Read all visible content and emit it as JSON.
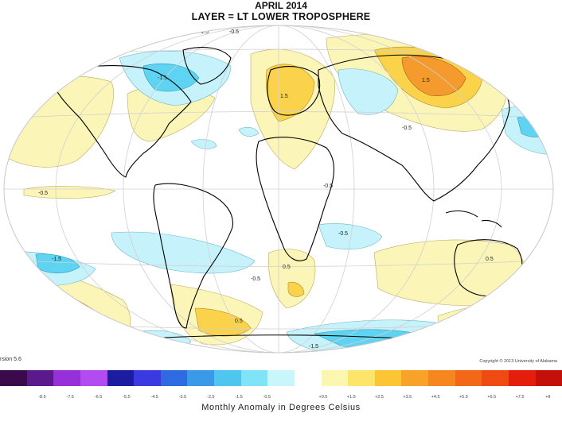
{
  "title": "APRIL 2014",
  "subtitle": "LAYER = LT LOWER TROPOSPHERE",
  "footer": {
    "version": "rsion 5.6",
    "copyright": "Copyright © 2013 University of Alabama"
  },
  "legend": {
    "label": "Monthly Anomaly in Degrees Celsius",
    "colors": [
      "#3a0a4a",
      "#5a1a8c",
      "#9630d8",
      "#b24cf0",
      "#1c1ca0",
      "#3a3ae0",
      "#2f6be0",
      "#3a9ae8",
      "#4fc6f0",
      "#7fe4f8",
      "#c9f6fb",
      "#ffffff",
      "#fbf6b0",
      "#fce56a",
      "#fbc534",
      "#f8a22a",
      "#f6861f",
      "#f26818",
      "#ee4a12",
      "#e41e0c",
      "#c4100a"
    ],
    "ticks": [
      "",
      "-8.5",
      "-7.5",
      "-6.5",
      "-5.5",
      "-4.5",
      "-3.5",
      "-2.5",
      "-1.5",
      "-0.5",
      "",
      "+0.5",
      "+1.5",
      "+2.5",
      "+3.5",
      "+4.5",
      "+5.5",
      "+6.5",
      "+7.5",
      "+8"
    ]
  },
  "contour_labels": [
    "-1.5",
    "-1.5",
    "-0.5",
    "-0.5",
    "-0.5",
    "1.5",
    "1.5",
    "1.5",
    "-0.5",
    "-0.5",
    "-0.5",
    "0.5",
    "0.5",
    "0.5",
    "-0.5",
    "-0.5",
    "-1.5",
    "-1.5",
    "-0.5",
    "-0.5",
    "1.5"
  ],
  "colors": {
    "warm_light": "#fbf6b8",
    "warm_mid": "#fbd34a",
    "warm_dark": "#f59a2c",
    "cool_light": "#c6f2fb",
    "cool_mid": "#5ed4f2",
    "grid": "#d0d0d0",
    "coast": "#000000"
  }
}
